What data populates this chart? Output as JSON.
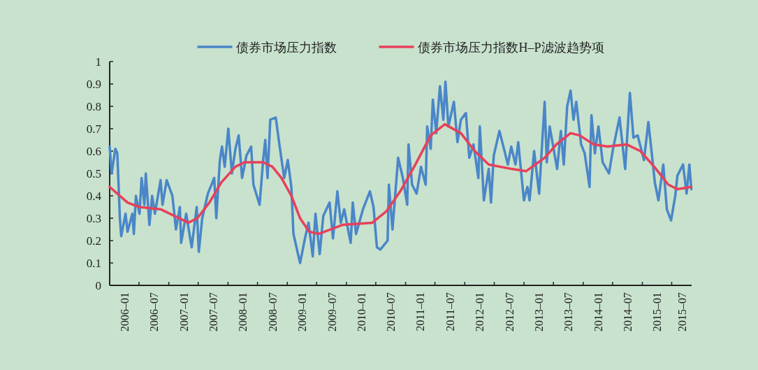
{
  "chart_data": {
    "type": "line",
    "legend": "top",
    "xlim": [
      "2006-01-01",
      "2015-11-01"
    ],
    "xticks": [
      {
        "value": "2006-04-01",
        "label": "2006–01"
      },
      {
        "value": "2006-07-01",
        "label": null
      },
      {
        "value": "2006-10-01",
        "label": "2006–07"
      },
      {
        "value": "2007-01-01",
        "label": null
      },
      {
        "value": "2007-04-01",
        "label": "2007–01"
      },
      {
        "value": "2007-07-01",
        "label": null
      },
      {
        "value": "2007-10-01",
        "label": "2007–07"
      },
      {
        "value": "2008-01-01",
        "label": null
      },
      {
        "value": "2008-04-01",
        "label": "2008–01"
      },
      {
        "value": "2008-07-01",
        "label": null
      },
      {
        "value": "2008-10-01",
        "label": "2008–07"
      },
      {
        "value": "2009-01-01",
        "label": null
      },
      {
        "value": "2009-04-01",
        "label": "2009–01"
      },
      {
        "value": "2009-07-01",
        "label": null
      },
      {
        "value": "2009-10-01",
        "label": "2009–07"
      },
      {
        "value": "2010-01-01",
        "label": null
      },
      {
        "value": "2010-04-01",
        "label": "2010–01"
      },
      {
        "value": "2010-07-01",
        "label": null
      },
      {
        "value": "2010-10-01",
        "label": "2010–07"
      },
      {
        "value": "2011-01-01",
        "label": null
      },
      {
        "value": "2011-04-01",
        "label": "2011–01"
      },
      {
        "value": "2011-07-01",
        "label": null
      },
      {
        "value": "2011-10-01",
        "label": "2011–07"
      },
      {
        "value": "2012-01-01",
        "label": null
      },
      {
        "value": "2012-04-01",
        "label": "2012–01"
      },
      {
        "value": "2012-07-01",
        "label": null
      },
      {
        "value": "2012-10-01",
        "label": "2012–07"
      },
      {
        "value": "2013-01-01",
        "label": null
      },
      {
        "value": "2013-04-01",
        "label": "2013–01"
      },
      {
        "value": "2013-07-01",
        "label": null
      },
      {
        "value": "2013-10-01",
        "label": "2013–07"
      },
      {
        "value": "2014-01-01",
        "label": null
      },
      {
        "value": "2014-04-01",
        "label": "2014–01"
      },
      {
        "value": "2014-07-01",
        "label": null
      },
      {
        "value": "2014-10-01",
        "label": "2014–07"
      },
      {
        "value": "2015-01-01",
        "label": null
      },
      {
        "value": "2015-04-01",
        "label": "2015–01"
      },
      {
        "value": "2015-07-01",
        "label": null
      },
      {
        "value": "2015-09-01",
        "label": "2015–07"
      }
    ],
    "ylim": [
      0,
      1
    ],
    "yticks": [
      0,
      0.1,
      0.2,
      0.3,
      0.4,
      0.5,
      0.6,
      0.7,
      0.8,
      0.9,
      1
    ],
    "series": [
      {
        "name": "债券市场压力指数",
        "color": "#4a86c8",
        "x": [
          "2006-01-01",
          "2006-01-13",
          "2006-02-05",
          "2006-02-17",
          "2006-03-05",
          "2006-03-13",
          "2006-04-09",
          "2006-04-21",
          "2006-05-21",
          "2006-05-30",
          "2006-06-12",
          "2006-07-04",
          "2006-07-17",
          "2006-08-03",
          "2006-08-12",
          "2006-09-03",
          "2006-09-20",
          "2006-10-07",
          "2006-11-11",
          "2006-11-23",
          "2006-12-19",
          "2007-01-23",
          "2007-02-14",
          "2007-03-10",
          "2007-03-18",
          "2007-04-18",
          "2007-05-22",
          "2007-06-22",
          "2007-07-05",
          "2007-07-26",
          "2007-08-30",
          "2007-10-08",
          "2007-10-21",
          "2007-11-12",
          "2007-11-25",
          "2007-12-12",
          "2008-01-03",
          "2008-01-25",
          "2008-02-16",
          "2008-03-07",
          "2008-03-28",
          "2008-04-24",
          "2008-05-23",
          "2008-06-06",
          "2008-07-14",
          "2008-08-05",
          "2008-08-18",
          "2008-09-01",
          "2008-09-18",
          "2008-10-22",
          "2008-11-13",
          "2008-12-13",
          "2009-01-04",
          "2009-01-26",
          "2009-02-08",
          "2009-03-08",
          "2009-03-21",
          "2009-04-20",
          "2009-05-12",
          "2009-06-07",
          "2009-06-24",
          "2009-07-20",
          "2009-08-11",
          "2009-09-19",
          "2009-10-10",
          "2009-11-06",
          "2009-11-27",
          "2009-12-18",
          "2010-01-27",
          "2010-02-09",
          "2010-03-01",
          "2010-04-13",
          "2010-05-26",
          "2010-06-17",
          "2010-07-08",
          "2010-07-29",
          "2010-09-12",
          "2010-09-20",
          "2010-10-12",
          "2010-11-16",
          "2010-12-15",
          "2011-01-11",
          "2011-01-19",
          "2011-02-10",
          "2011-03-10",
          "2011-04-06",
          "2011-05-05",
          "2011-05-14",
          "2011-06-05",
          "2011-06-18",
          "2011-07-09",
          "2011-08-01",
          "2011-08-22",
          "2011-09-04",
          "2011-09-22",
          "2011-10-26",
          "2011-11-17",
          "2011-12-08",
          "2012-01-08",
          "2012-01-29",
          "2012-02-24",
          "2012-03-25",
          "2012-04-03",
          "2012-04-28",
          "2012-05-28",
          "2012-06-11",
          "2012-06-28",
          "2012-08-02",
          "2012-08-23",
          "2012-09-23",
          "2012-10-14",
          "2012-11-09",
          "2012-11-26",
          "2012-12-31",
          "2013-01-22",
          "2013-02-04",
          "2013-03-04",
          "2013-04-04",
          "2013-05-08",
          "2013-05-21",
          "2013-06-08",
          "2013-07-24",
          "2013-08-16",
          "2013-09-03",
          "2013-09-24",
          "2013-10-15",
          "2013-11-02",
          "2013-11-19",
          "2013-12-19",
          "2014-01-10",
          "2014-02-09",
          "2014-02-21",
          "2014-03-14",
          "2014-04-05",
          "2014-05-01",
          "2014-06-09",
          "2014-07-04",
          "2014-08-13",
          "2014-09-17",
          "2014-10-16",
          "2014-11-07",
          "2014-12-03",
          "2015-01-11",
          "2015-02-07",
          "2015-02-28",
          "2015-03-19",
          "2015-04-10",
          "2015-05-10",
          "2015-06-01",
          "2015-06-27",
          "2015-07-23",
          "2015-08-05",
          "2015-09-09",
          "2015-10-01",
          "2015-10-18",
          "2015-10-30"
        ],
        "values": [
          0.62,
          0.5,
          0.61,
          0.59,
          0.3,
          0.22,
          0.32,
          0.24,
          0.32,
          0.23,
          0.4,
          0.32,
          0.48,
          0.36,
          0.5,
          0.27,
          0.4,
          0.32,
          0.47,
          0.36,
          0.47,
          0.4,
          0.25,
          0.35,
          0.19,
          0.32,
          0.17,
          0.35,
          0.15,
          0.3,
          0.41,
          0.48,
          0.3,
          0.56,
          0.62,
          0.53,
          0.7,
          0.5,
          0.61,
          0.67,
          0.48,
          0.58,
          0.62,
          0.45,
          0.36,
          0.56,
          0.65,
          0.48,
          0.74,
          0.75,
          0.63,
          0.48,
          0.56,
          0.44,
          0.23,
          0.14,
          0.1,
          0.21,
          0.28,
          0.13,
          0.32,
          0.14,
          0.31,
          0.37,
          0.21,
          0.42,
          0.28,
          0.34,
          0.19,
          0.37,
          0.23,
          0.34,
          0.42,
          0.35,
          0.17,
          0.16,
          0.2,
          0.45,
          0.25,
          0.57,
          0.48,
          0.36,
          0.63,
          0.45,
          0.41,
          0.53,
          0.45,
          0.71,
          0.61,
          0.83,
          0.68,
          0.89,
          0.74,
          0.91,
          0.71,
          0.82,
          0.64,
          0.74,
          0.77,
          0.57,
          0.63,
          0.48,
          0.71,
          0.38,
          0.52,
          0.37,
          0.58,
          0.69,
          0.63,
          0.54,
          0.62,
          0.54,
          0.64,
          0.38,
          0.44,
          0.38,
          0.6,
          0.41,
          0.82,
          0.55,
          0.71,
          0.52,
          0.69,
          0.54,
          0.8,
          0.87,
          0.74,
          0.82,
          0.63,
          0.59,
          0.44,
          0.76,
          0.59,
          0.71,
          0.55,
          0.5,
          0.61,
          0.75,
          0.52,
          0.86,
          0.66,
          0.67,
          0.56,
          0.73,
          0.59,
          0.46,
          0.38,
          0.54,
          0.34,
          0.29,
          0.4,
          0.49,
          0.54,
          0.41,
          0.54,
          0.43
        ]
      },
      {
        "name": "债券市场压力指数H–P滤波趋势项",
        "color": "#e8405a",
        "x": [
          "2006-01-01",
          "2006-04-21",
          "2006-07-04",
          "2006-11-11",
          "2007-02-06",
          "2007-05-01",
          "2007-06-26",
          "2007-09-08",
          "2007-11-21",
          "2008-02-16",
          "2008-04-11",
          "2008-08-05",
          "2008-10-01",
          "2008-11-26",
          "2009-01-26",
          "2009-03-21",
          "2009-05-16",
          "2009-07-15",
          "2009-12-06",
          "2010-06-09",
          "2010-09-03",
          "2010-11-29",
          "2011-02-23",
          "2011-06-05",
          "2011-08-31",
          "2011-12-08",
          "2012-03-03",
          "2012-05-28",
          "2012-10-18",
          "2013-01-13",
          "2013-05-08",
          "2013-07-20",
          "2013-10-15",
          "2013-12-11",
          "2014-03-06",
          "2014-06-01",
          "2014-09-25",
          "2014-12-20",
          "2015-03-15",
          "2015-06-10",
          "2015-08-05",
          "2015-10-30"
        ],
        "values": [
          0.44,
          0.37,
          0.35,
          0.34,
          0.31,
          0.28,
          0.3,
          0.37,
          0.46,
          0.53,
          0.55,
          0.55,
          0.53,
          0.48,
          0.4,
          0.3,
          0.24,
          0.23,
          0.27,
          0.28,
          0.33,
          0.42,
          0.53,
          0.67,
          0.72,
          0.68,
          0.6,
          0.54,
          0.52,
          0.51,
          0.57,
          0.63,
          0.68,
          0.67,
          0.63,
          0.62,
          0.63,
          0.6,
          0.53,
          0.45,
          0.43,
          0.44
        ]
      }
    ]
  }
}
